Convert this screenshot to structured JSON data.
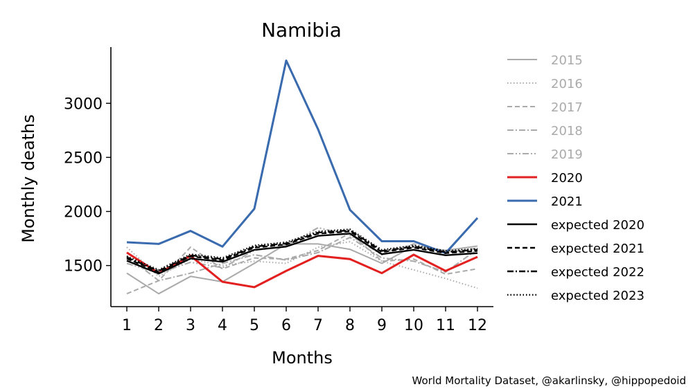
{
  "chart_data": {
    "type": "line",
    "title": "Namibia",
    "xlabel": "Months",
    "ylabel": "Monthly deaths",
    "credit": "World Mortality Dataset, @akarlinsky, @hippopedoid",
    "x": [
      1,
      2,
      3,
      4,
      5,
      6,
      7,
      8,
      9,
      10,
      11,
      12
    ],
    "xticks": [
      "1",
      "2",
      "3",
      "4",
      "5",
      "6",
      "7",
      "8",
      "9",
      "10",
      "11",
      "12"
    ],
    "yticks": [
      1500,
      2000,
      2500,
      3000
    ],
    "ylim": [
      1120,
      3520
    ],
    "grid": false,
    "legend_position": "right",
    "series": [
      {
        "name": "2015",
        "color": "#aaaaaa",
        "dash": "solid",
        "width": 1.2,
        "legend_color": "#aaaaaa",
        "values": [
          1430,
          1240,
          1400,
          1350,
          1520,
          1700,
          1700,
          1650,
          1520,
          1680,
          1640,
          1680
        ]
      },
      {
        "name": "2016",
        "color": "#aaaaaa",
        "dash": "dotted",
        "width": 1.2,
        "legend_color": "#aaaaaa",
        "values": [
          1670,
          1400,
          1560,
          1500,
          1540,
          1520,
          1670,
          1720,
          1540,
          1460,
          1380,
          1290
        ]
      },
      {
        "name": "2017",
        "color": "#aaaaaa",
        "dash": "dashed",
        "width": 1.2,
        "legend_color": "#aaaaaa",
        "values": [
          1240,
          1360,
          1670,
          1470,
          1570,
          1560,
          1640,
          1800,
          1540,
          1560,
          1420,
          1470
        ]
      },
      {
        "name": "2018",
        "color": "#aaaaaa",
        "dash": "dashdot",
        "width": 1.2,
        "legend_color": "#aaaaaa",
        "values": [
          1590,
          1360,
          1430,
          1520,
          1600,
          1550,
          1620,
          1760,
          1570,
          1540,
          1440,
          1650
        ]
      },
      {
        "name": "2019",
        "color": "#aaaaaa",
        "dash": "dashdotdot",
        "width": 1.2,
        "legend_color": "#aaaaaa",
        "values": [
          1520,
          1430,
          1530,
          1480,
          1640,
          1680,
          1850,
          1780,
          1600,
          1700,
          1620,
          1660
        ]
      },
      {
        "name": "2020",
        "color": "#e32020",
        "dash": "solid",
        "width": 1.8,
        "legend_color": "#000000",
        "values": [
          1620,
          1430,
          1590,
          1350,
          1300,
          1450,
          1590,
          1560,
          1430,
          1600,
          1450,
          1580
        ]
      },
      {
        "name": "2021",
        "color": "#3a6baf",
        "dash": "solid",
        "width": 1.8,
        "legend_color": "#000000",
        "values": [
          1715,
          1700,
          1820,
          1675,
          2025,
          3395,
          2760,
          2015,
          1725,
          1725,
          1615,
          1940
        ]
      },
      {
        "name": "expected 2020",
        "color": "#000000",
        "dash": "solid",
        "width": 1.4,
        "legend_color": "#000000",
        "values": [
          1545,
          1425,
          1565,
          1535,
          1645,
          1675,
          1775,
          1795,
          1605,
          1645,
          1595,
          1615
        ]
      },
      {
        "name": "expected 2021",
        "color": "#000000",
        "dash": "dashed",
        "width": 1.4,
        "legend_color": "#000000",
        "values": [
          1565,
          1440,
          1585,
          1550,
          1665,
          1695,
          1795,
          1815,
          1625,
          1665,
          1615,
          1635
        ]
      },
      {
        "name": "expected 2022",
        "color": "#000000",
        "dash": "dashdot",
        "width": 1.4,
        "legend_color": "#000000",
        "values": [
          1575,
          1450,
          1595,
          1560,
          1675,
          1705,
          1805,
          1825,
          1635,
          1675,
          1625,
          1645
        ]
      },
      {
        "name": "expected 2023",
        "color": "#000000",
        "dash": "dotted",
        "width": 1.4,
        "legend_color": "#000000",
        "values": [
          1585,
          1460,
          1605,
          1570,
          1685,
          1715,
          1815,
          1835,
          1645,
          1685,
          1635,
          1655
        ]
      }
    ]
  }
}
